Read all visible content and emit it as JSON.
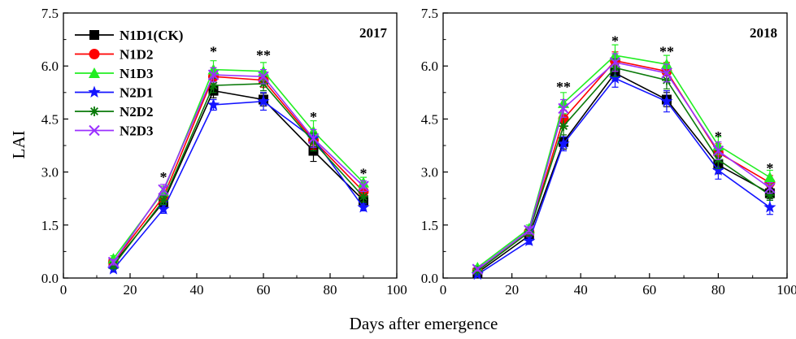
{
  "figure": {
    "ylabel": "LAI",
    "xlabel": "Days after emergence"
  },
  "legend": [
    {
      "name": "N1D1(CK)",
      "color": "#000000",
      "marker": "square"
    },
    {
      "name": "N1D2",
      "color": "#ff0000",
      "marker": "circle"
    },
    {
      "name": "N1D3",
      "color": "#22ee22",
      "marker": "triangle-up"
    },
    {
      "name": "N2D1",
      "color": "#1414ff",
      "marker": "star"
    },
    {
      "name": "N2D2",
      "color": "#0a7a0a",
      "marker": "asterisk"
    },
    {
      "name": "N2D3",
      "color": "#9b30ff",
      "marker": "x"
    }
  ],
  "chart_data": [
    {
      "type": "line",
      "panel_label": "2017",
      "xlim": [
        0,
        100
      ],
      "ylim": [
        0,
        7.5
      ],
      "xticks": [
        "0",
        "20",
        "40",
        "60",
        "80",
        "100"
      ],
      "yticks": [
        "0.0",
        "1.5",
        "3.0",
        "4.5",
        "6.0",
        "7.5"
      ],
      "x": [
        15,
        30,
        45,
        60,
        75,
        90
      ],
      "series": [
        {
          "name": "N1D1(CK)",
          "values": [
            0.4,
            2.15,
            5.3,
            5.05,
            3.6,
            2.2
          ],
          "errors": [
            0.08,
            0.15,
            0.2,
            0.18,
            0.3,
            0.15
          ]
        },
        {
          "name": "N1D2",
          "values": [
            0.45,
            2.3,
            5.7,
            5.6,
            3.9,
            2.45
          ],
          "errors": [
            0.08,
            0.15,
            0.25,
            0.2,
            0.25,
            0.15
          ]
        },
        {
          "name": "N1D3",
          "values": [
            0.55,
            2.45,
            5.9,
            5.85,
            4.15,
            2.7
          ],
          "errors": [
            0.08,
            0.15,
            0.25,
            0.25,
            0.3,
            0.15
          ]
        },
        {
          "name": "N2D1",
          "values": [
            0.25,
            1.95,
            4.9,
            5.0,
            3.95,
            2.0
          ],
          "errors": [
            0.08,
            0.12,
            0.15,
            0.25,
            0.25,
            0.1
          ]
        },
        {
          "name": "N2D2",
          "values": [
            0.35,
            2.2,
            5.45,
            5.5,
            3.85,
            2.3
          ],
          "errors": [
            0.08,
            0.12,
            0.2,
            0.2,
            0.25,
            0.15
          ]
        },
        {
          "name": "N2D3",
          "values": [
            0.45,
            2.5,
            5.75,
            5.7,
            3.95,
            2.6
          ],
          "errors": [
            0.08,
            0.15,
            0.2,
            0.2,
            0.25,
            0.15
          ]
        }
      ],
      "annotations": [
        {
          "x": 30,
          "y": 2.9,
          "text": "*"
        },
        {
          "x": 45,
          "y": 6.45,
          "text": "*"
        },
        {
          "x": 60,
          "y": 6.35,
          "text": "**"
        },
        {
          "x": 75,
          "y": 4.6,
          "text": "*"
        },
        {
          "x": 90,
          "y": 3.0,
          "text": "*"
        }
      ]
    },
    {
      "type": "line",
      "panel_label": "2018",
      "xlim": [
        0,
        100
      ],
      "ylim": [
        0,
        7.5
      ],
      "xticks": [
        "0",
        "20",
        "40",
        "60",
        "80",
        "100"
      ],
      "yticks": [
        "0.0",
        "1.5",
        "3.0",
        "4.5",
        "6.0",
        "7.5"
      ],
      "x": [
        10,
        25,
        35,
        50,
        65,
        80,
        95
      ],
      "series": [
        {
          "name": "N1D1(CK)",
          "values": [
            0.15,
            1.2,
            3.85,
            5.8,
            5.05,
            3.2,
            2.4
          ],
          "errors": [
            0.05,
            0.1,
            0.2,
            0.2,
            0.2,
            0.25,
            0.15
          ]
        },
        {
          "name": "N1D2",
          "values": [
            0.2,
            1.3,
            4.5,
            6.15,
            5.85,
            3.55,
            2.7
          ],
          "errors": [
            0.05,
            0.1,
            0.25,
            0.25,
            0.25,
            0.25,
            0.2
          ]
        },
        {
          "name": "N1D3",
          "values": [
            0.3,
            1.4,
            4.95,
            6.3,
            6.05,
            3.75,
            2.85
          ],
          "errors": [
            0.05,
            0.1,
            0.3,
            0.3,
            0.25,
            0.25,
            0.2
          ]
        },
        {
          "name": "N2D1",
          "values": [
            0.1,
            1.05,
            3.8,
            5.65,
            5.0,
            3.05,
            2.0
          ],
          "errors": [
            0.05,
            0.1,
            0.2,
            0.25,
            0.3,
            0.25,
            0.2
          ]
        },
        {
          "name": "N2D2",
          "values": [
            0.2,
            1.3,
            4.3,
            5.95,
            5.6,
            3.35,
            2.35
          ],
          "errors": [
            0.05,
            0.1,
            0.25,
            0.25,
            0.25,
            0.25,
            0.15
          ]
        },
        {
          "name": "N2D3",
          "values": [
            0.25,
            1.35,
            4.8,
            6.1,
            5.8,
            3.6,
            2.55
          ],
          "errors": [
            0.05,
            0.1,
            0.25,
            0.25,
            0.25,
            0.25,
            0.15
          ]
        }
      ],
      "annotations": [
        {
          "x": 35,
          "y": 5.45,
          "text": "**"
        },
        {
          "x": 50,
          "y": 6.75,
          "text": "*"
        },
        {
          "x": 65,
          "y": 6.45,
          "text": "**"
        },
        {
          "x": 80,
          "y": 4.05,
          "text": "*"
        },
        {
          "x": 95,
          "y": 3.15,
          "text": "*"
        }
      ]
    }
  ]
}
